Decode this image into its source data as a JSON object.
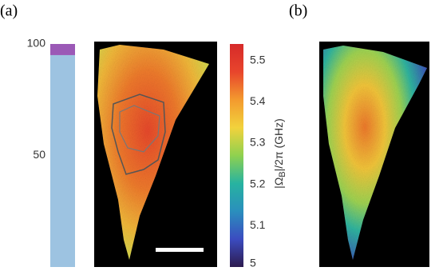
{
  "panel_labels": [
    "(a)",
    "(b)"
  ],
  "chart_data": [
    {
      "type": "bar",
      "ylim": [
        0,
        100
      ],
      "yticks": [
        50,
        100
      ],
      "series": [
        {
          "color": "#9dc3e1",
          "values": [
            95
          ]
        },
        {
          "color": "#9b59b6",
          "values": [
            5
          ]
        }
      ]
    },
    {
      "type": "colorbar",
      "ylim": [
        5,
        5.54
      ],
      "yticks": [
        5,
        5.1,
        5.2,
        5.3,
        5.4,
        5.5
      ],
      "label": [
        "|Ω",
        "B",
        "|/2π (GHz)"
      ],
      "colors": [
        "#2d1b4e",
        "#3b4cc0",
        "#2a8fbd",
        "#27b3a0",
        "#8fd14f",
        "#f2d23c",
        "#f39a2e",
        "#e8452c",
        "#d62a2a"
      ]
    }
  ]
}
